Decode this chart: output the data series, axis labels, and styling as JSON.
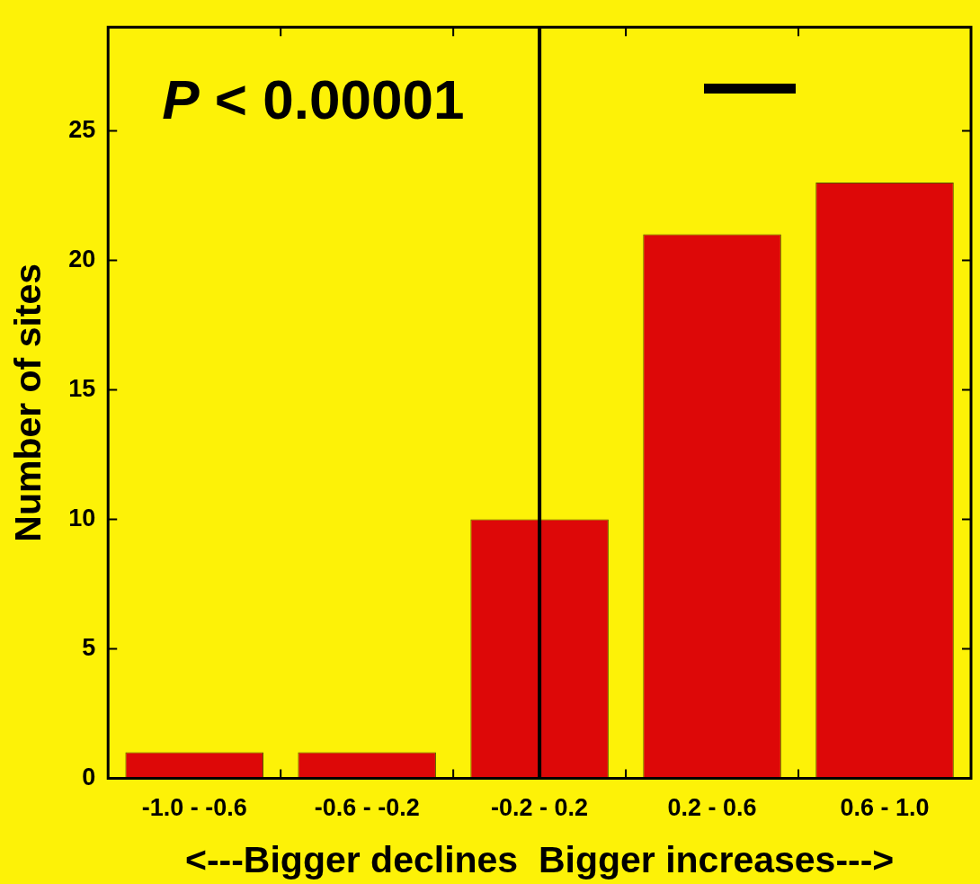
{
  "chart_data": {
    "type": "bar",
    "categories": [
      "-1.0 - -0.6",
      "-0.6 - -0.2",
      "-0.2 - 0.2",
      "0.2 - 0.6",
      "0.6 - 1.0"
    ],
    "values": [
      1,
      1,
      10,
      21,
      23
    ],
    "color": "#dd0808",
    "ylabel": "Number of sites",
    "xlabel": "<---Bigger declines  Bigger increases--->",
    "ylim": [
      0,
      29
    ],
    "yticks": [
      0,
      5,
      10,
      15,
      20,
      25
    ],
    "grid": false,
    "legend": false,
    "ref_lines": [
      {
        "axis": "x",
        "value": "-0.2 - 0.2",
        "color": "#000000"
      }
    ],
    "annotations": [
      "P < 0.00001"
    ]
  }
}
